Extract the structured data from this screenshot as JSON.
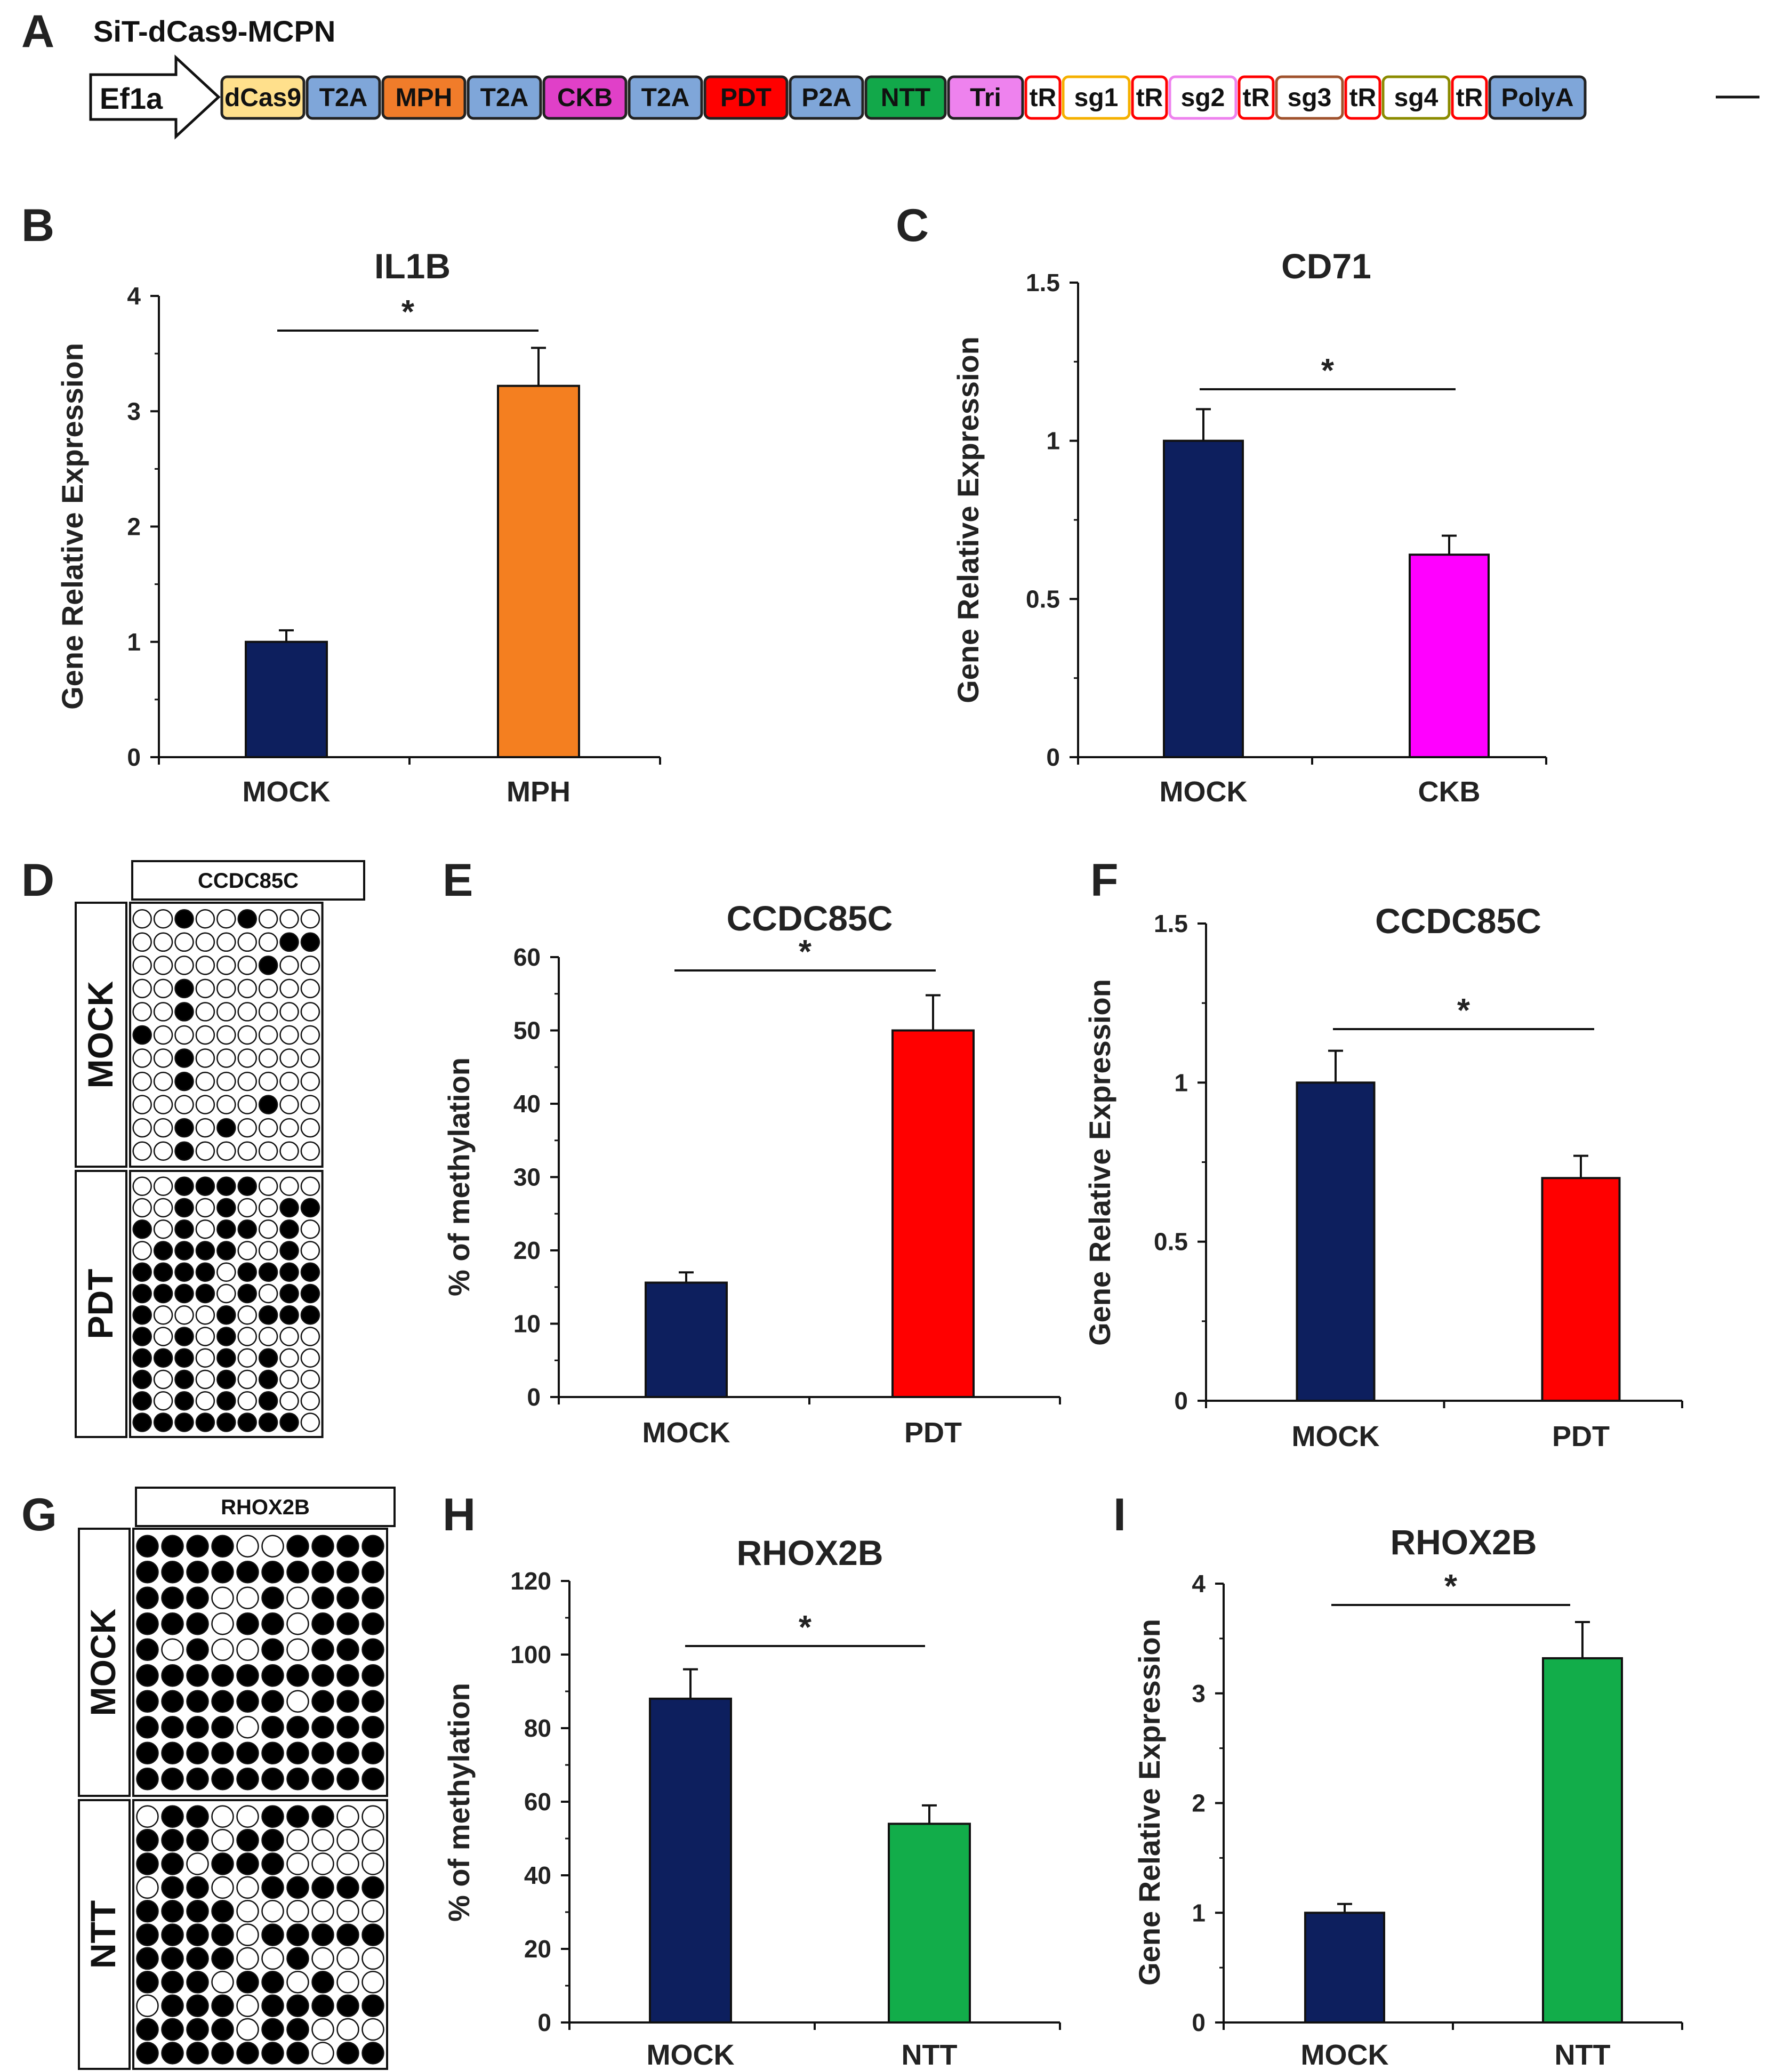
{
  "construct": {
    "panel": "A",
    "title": "SiT-dCas9-MCPN",
    "promoter": "Ef1a",
    "segments": [
      {
        "label": "dCas9",
        "fill": "#ffe08c",
        "stroke": "#222222"
      },
      {
        "label": "T2A",
        "fill": "#7fa6d9",
        "stroke": "#222222"
      },
      {
        "label": "MPH",
        "fill": "#f07c2a",
        "stroke": "#222222"
      },
      {
        "label": "T2A",
        "fill": "#7fa6d9",
        "stroke": "#222222"
      },
      {
        "label": "CKB",
        "fill": "#e040c8",
        "stroke": "#222222"
      },
      {
        "label": "T2A",
        "fill": "#7fa6d9",
        "stroke": "#222222"
      },
      {
        "label": "PDT",
        "fill": "#ff0000",
        "stroke": "#222222"
      },
      {
        "label": "P2A",
        "fill": "#7fa6d9",
        "stroke": "#222222"
      },
      {
        "label": "NTT",
        "fill": "#12a84a",
        "stroke": "#222222"
      },
      {
        "label": "Tri",
        "fill": "#ee82ee",
        "stroke": "#222222"
      },
      {
        "label": "tR",
        "fill": "#ffffff",
        "stroke": "#ff0000"
      },
      {
        "label": "sg1",
        "fill": "#ffffff",
        "stroke": "#f5b000"
      },
      {
        "label": "tR",
        "fill": "#ffffff",
        "stroke": "#ff0000"
      },
      {
        "label": "sg2",
        "fill": "#ffffff",
        "stroke": "#ee82ee"
      },
      {
        "label": "tR",
        "fill": "#ffffff",
        "stroke": "#ff0000"
      },
      {
        "label": "sg3",
        "fill": "#ffffff",
        "stroke": "#a0522d"
      },
      {
        "label": "tR",
        "fill": "#ffffff",
        "stroke": "#ff0000"
      },
      {
        "label": "sg4",
        "fill": "#ffffff",
        "stroke": "#8b8b00"
      },
      {
        "label": "tR",
        "fill": "#ffffff",
        "stroke": "#ff0000"
      },
      {
        "label": "PolyA",
        "fill": "#7fa6d9",
        "stroke": "#222222"
      }
    ]
  },
  "chart_data": [
    {
      "panel": "B",
      "type": "bar",
      "title": "IL1B",
      "ylabel": "Gene Relative Expression",
      "xlabel": "",
      "categories": [
        "MOCK",
        "MPH"
      ],
      "values": [
        1.0,
        3.22
      ],
      "errors": [
        0.1,
        0.33
      ],
      "colors": [
        "#0d1f5e",
        "#f47f20"
      ],
      "ylim": [
        0,
        4
      ],
      "yticks": [
        0,
        1,
        2,
        3,
        4
      ],
      "ytick_labels": [
        "0",
        "1",
        "2",
        "3",
        "4"
      ],
      "significance": "*"
    },
    {
      "panel": "C",
      "type": "bar",
      "title": "CD71",
      "ylabel": "Gene Relative Expression",
      "xlabel": "",
      "categories": [
        "MOCK",
        "CKB"
      ],
      "values": [
        1.0,
        0.64
      ],
      "errors": [
        0.1,
        0.06
      ],
      "colors": [
        "#0d1f5e",
        "#ff00ff"
      ],
      "ylim": [
        0,
        1.5
      ],
      "yticks": [
        0,
        0.5,
        1,
        1.5
      ],
      "ytick_labels": [
        "0",
        "0.5",
        "1",
        "1.5"
      ],
      "significance": "*"
    },
    {
      "panel": "E",
      "type": "bar",
      "title": "CCDC85C",
      "ylabel": "% of methylation",
      "xlabel": "",
      "categories": [
        "MOCK",
        "PDT"
      ],
      "values": [
        15.6,
        50.0
      ],
      "errors": [
        1.4,
        4.8
      ],
      "colors": [
        "#0d1f5e",
        "#ff0000"
      ],
      "ylim": [
        0,
        60
      ],
      "yticks": [
        0,
        10,
        20,
        30,
        40,
        50,
        60
      ],
      "ytick_labels": [
        "0",
        "10",
        "20",
        "30",
        "40",
        "50",
        "60"
      ],
      "significance": "*"
    },
    {
      "panel": "F",
      "type": "bar",
      "title": "CCDC85C",
      "ylabel": "Gene Relative Expression",
      "xlabel": "",
      "categories": [
        "MOCK",
        "PDT"
      ],
      "values": [
        1.0,
        0.7
      ],
      "errors": [
        0.1,
        0.07
      ],
      "colors": [
        "#0d1f5e",
        "#ff0000"
      ],
      "ylim": [
        0,
        1.5
      ],
      "yticks": [
        0,
        0.5,
        1,
        1.5
      ],
      "ytick_labels": [
        "0",
        "0.5",
        "1",
        "1.5"
      ],
      "significance": "*"
    },
    {
      "panel": "H",
      "type": "bar",
      "title": "RHOX2B",
      "ylabel": "% of methylation",
      "xlabel": "",
      "categories": [
        "MOCK",
        "NTT"
      ],
      "values": [
        88,
        54
      ],
      "errors": [
        8,
        5
      ],
      "colors": [
        "#0d1f5e",
        "#12ad4a"
      ],
      "ylim": [
        0,
        120
      ],
      "yticks": [
        0,
        20,
        40,
        60,
        80,
        100,
        120
      ],
      "ytick_labels": [
        "0",
        "20",
        "40",
        "60",
        "80",
        "100",
        "120"
      ],
      "significance": "*"
    },
    {
      "panel": "I",
      "type": "bar",
      "title": "RHOX2B",
      "ylabel": "Gene Relative Expression",
      "xlabel": "",
      "categories": [
        "MOCK",
        "NTT"
      ],
      "values": [
        1.0,
        3.32
      ],
      "errors": [
        0.08,
        0.33
      ],
      "colors": [
        "#0d1f5e",
        "#12ad4a"
      ],
      "ylim": [
        0,
        4
      ],
      "yticks": [
        0,
        1,
        2,
        3,
        4
      ],
      "ytick_labels": [
        "0",
        "1",
        "2",
        "3",
        "4"
      ],
      "significance": "*"
    }
  ],
  "methylation_grids": [
    {
      "panel": "D",
      "gene": "CCDC85C",
      "groups": [
        {
          "label": "MOCK",
          "rows": [
            [
              0,
              0,
              1,
              0,
              0,
              1,
              0,
              0,
              0
            ],
            [
              0,
              0,
              0,
              0,
              0,
              0,
              0,
              1,
              1
            ],
            [
              0,
              0,
              0,
              0,
              0,
              0,
              1,
              0,
              0
            ],
            [
              0,
              0,
              1,
              0,
              0,
              0,
              0,
              0,
              0
            ],
            [
              0,
              0,
              1,
              0,
              0,
              0,
              0,
              0,
              0
            ],
            [
              1,
              0,
              0,
              0,
              0,
              0,
              0,
              0,
              0
            ],
            [
              0,
              0,
              1,
              0,
              0,
              0,
              0,
              0,
              0
            ],
            [
              0,
              0,
              1,
              0,
              0,
              0,
              0,
              0,
              0
            ],
            [
              0,
              0,
              0,
              0,
              0,
              0,
              1,
              0,
              0
            ],
            [
              0,
              0,
              1,
              0,
              1,
              0,
              0,
              0,
              0
            ],
            [
              0,
              0,
              1,
              0,
              0,
              0,
              0,
              0,
              0
            ]
          ]
        },
        {
          "label": "PDT",
          "rows": [
            [
              0,
              0,
              1,
              1,
              1,
              1,
              0,
              0,
              0
            ],
            [
              0,
              0,
              1,
              0,
              1,
              0,
              0,
              1,
              1
            ],
            [
              1,
              0,
              1,
              0,
              1,
              1,
              0,
              1,
              0
            ],
            [
              0,
              1,
              1,
              1,
              1,
              0,
              0,
              1,
              0
            ],
            [
              1,
              1,
              1,
              1,
              0,
              1,
              1,
              1,
              1
            ],
            [
              1,
              1,
              1,
              1,
              0,
              1,
              0,
              1,
              1
            ],
            [
              1,
              0,
              0,
              0,
              1,
              0,
              1,
              1,
              1
            ],
            [
              1,
              0,
              1,
              0,
              1,
              0,
              0,
              0,
              0
            ],
            [
              1,
              1,
              1,
              0,
              1,
              0,
              1,
              0,
              0
            ],
            [
              1,
              0,
              1,
              0,
              1,
              0,
              1,
              0,
              0
            ],
            [
              1,
              0,
              1,
              0,
              1,
              0,
              1,
              0,
              0
            ],
            [
              1,
              1,
              1,
              1,
              1,
              1,
              1,
              1,
              0
            ]
          ]
        }
      ]
    },
    {
      "panel": "G",
      "gene": "RHOX2B",
      "groups": [
        {
          "label": "MOCK",
          "rows": [
            [
              1,
              1,
              1,
              1,
              0,
              0,
              1,
              1,
              1,
              1
            ],
            [
              1,
              1,
              1,
              1,
              1,
              1,
              1,
              1,
              1,
              1
            ],
            [
              1,
              1,
              1,
              0,
              0,
              1,
              0,
              1,
              1,
              1
            ],
            [
              1,
              1,
              1,
              0,
              1,
              1,
              0,
              1,
              1,
              1
            ],
            [
              1,
              0,
              1,
              0,
              0,
              1,
              0,
              1,
              1,
              1
            ],
            [
              1,
              1,
              1,
              1,
              1,
              1,
              1,
              1,
              1,
              1
            ],
            [
              1,
              1,
              1,
              1,
              1,
              1,
              0,
              1,
              1,
              1
            ],
            [
              1,
              1,
              1,
              1,
              0,
              1,
              1,
              1,
              1,
              1
            ],
            [
              1,
              1,
              1,
              1,
              1,
              1,
              1,
              1,
              1,
              1
            ],
            [
              1,
              1,
              1,
              1,
              1,
              1,
              1,
              1,
              1,
              1
            ]
          ]
        },
        {
          "label": "NTT",
          "rows": [
            [
              0,
              1,
              1,
              0,
              0,
              1,
              1,
              1,
              0,
              0
            ],
            [
              1,
              1,
              1,
              0,
              1,
              1,
              0,
              0,
              0,
              0
            ],
            [
              1,
              1,
              0,
              1,
              1,
              1,
              0,
              0,
              0,
              0
            ],
            [
              0,
              1,
              1,
              0,
              0,
              1,
              1,
              1,
              1,
              1
            ],
            [
              1,
              1,
              1,
              1,
              0,
              0,
              0,
              0,
              0,
              0
            ],
            [
              1,
              1,
              1,
              1,
              0,
              1,
              1,
              1,
              1,
              1
            ],
            [
              1,
              1,
              1,
              1,
              0,
              0,
              1,
              0,
              0,
              0
            ],
            [
              1,
              1,
              1,
              0,
              1,
              1,
              0,
              1,
              0,
              0
            ],
            [
              0,
              1,
              1,
              1,
              0,
              1,
              1,
              1,
              1,
              1
            ],
            [
              1,
              1,
              1,
              1,
              0,
              1,
              1,
              0,
              0,
              0
            ],
            [
              1,
              1,
              1,
              1,
              1,
              1,
              1,
              0,
              1,
              1
            ]
          ]
        }
      ]
    }
  ]
}
